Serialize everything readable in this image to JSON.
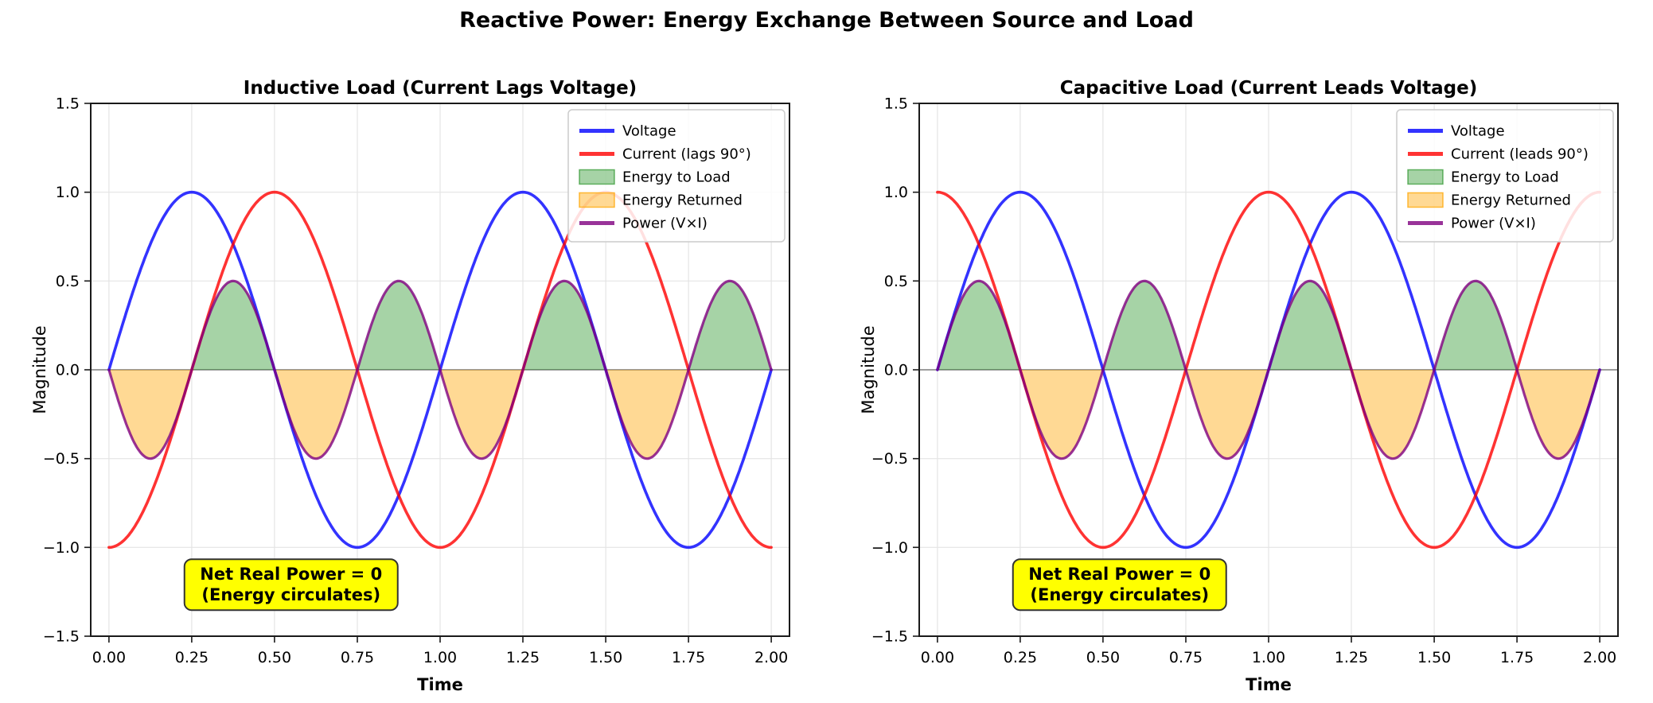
{
  "figure": {
    "title": "Reactive Power: Energy Exchange Between Source and Load",
    "background": "#ffffff"
  },
  "chart_data": [
    {
      "type": "line",
      "title": "Inductive Load (Current Lags Voltage)",
      "xlabel": "Time",
      "ylabel": "Magnitude",
      "xlim": [
        -0.055,
        2.055
      ],
      "ylim": [
        -1.5,
        1.5
      ],
      "grid": true,
      "zero_line_color": "#7f7f7f",
      "xticks": {
        "values": [
          0,
          0.25,
          0.5,
          0.75,
          1.0,
          1.25,
          1.5,
          1.75,
          2.0
        ],
        "labels": [
          "0.00",
          "0.25",
          "0.50",
          "0.75",
          "1.00",
          "1.25",
          "1.50",
          "1.75",
          "2.00"
        ]
      },
      "yticks": {
        "values": [
          -1.5,
          -1.0,
          -0.5,
          0.0,
          0.5,
          1.0,
          1.5
        ],
        "labels": [
          "−1.5",
          "−1.0",
          "−0.5",
          "0.0",
          "0.5",
          "1.0",
          "1.5"
        ]
      },
      "x_samples": [
        0,
        0.125,
        0.25,
        0.375,
        0.5,
        0.625,
        0.75,
        0.875,
        1.0,
        1.125,
        1.25,
        1.375,
        1.5,
        1.625,
        1.75,
        1.875,
        2.0
      ],
      "series": [
        {
          "name": "Voltage",
          "definition": "sin(2πt)",
          "color": "rgba(0,0,255,0.8)",
          "linewidth": 3.6,
          "amplitude": 1,
          "cycles": 1,
          "phase_deg": 0,
          "values": [
            0,
            0.707,
            1,
            0.707,
            0,
            -0.707,
            -1,
            -0.707,
            0,
            0.707,
            1,
            0.707,
            0,
            -0.707,
            -1,
            -0.707,
            0
          ]
        },
        {
          "name": "Current (lags 90°)",
          "definition": "sin(2πt − 90°)",
          "color": "rgba(255,0,0,0.8)",
          "linewidth": 3.6,
          "amplitude": 1,
          "cycles": 1,
          "phase_deg": -90,
          "values": [
            -1,
            -0.707,
            0,
            0.707,
            1,
            0.707,
            0,
            -0.707,
            -1,
            -0.707,
            0,
            0.707,
            1,
            0.707,
            0,
            -0.707,
            -1
          ]
        },
        {
          "name": "Power (V×I)",
          "definition": "−0.5·sin(4πt)",
          "color": "rgba(128,0,128,0.8)",
          "linewidth": 3.2,
          "amplitude": -0.5,
          "cycles": 2,
          "phase_deg": 0,
          "values": [
            0,
            -0.5,
            0,
            0.5,
            0,
            -0.5,
            0,
            0.5,
            0,
            -0.5,
            0,
            0.5,
            0,
            -0.5,
            0,
            0.5,
            0
          ]
        }
      ],
      "fills": {
        "source": "Power (V×I)",
        "positive": {
          "label": "Energy to Load",
          "color": "rgba(0,128,0,0.35)",
          "edge": "rgba(0,128,0,0.55)"
        },
        "negative": {
          "label": "Energy Returned",
          "color": "rgba(255,165,0,0.42)",
          "edge": "rgba(255,165,0,0.75)"
        }
      },
      "legend": {
        "position": "upper right",
        "entries": [
          {
            "label": "Voltage",
            "type": "line",
            "color": "rgba(0,0,255,0.8)"
          },
          {
            "label": "Current (lags 90°)",
            "type": "line",
            "color": "rgba(255,0,0,0.8)"
          },
          {
            "label": "Energy to Load",
            "type": "patch",
            "color": "rgba(0,128,0,0.35)",
            "edge": "rgba(0,128,0,0.55)"
          },
          {
            "label": "Energy Returned",
            "type": "patch",
            "color": "rgba(255,165,0,0.42)",
            "edge": "rgba(255,165,0,0.75)"
          },
          {
            "label": "Power (V×I)",
            "type": "line",
            "color": "rgba(128,0,128,0.8)"
          }
        ]
      },
      "annotation": {
        "text_lines": [
          "Net Real Power = 0",
          "(Energy circulates)"
        ],
        "x": 0.55,
        "y": -1.21,
        "facecolor": "#ffff00",
        "edgecolor": "#333333"
      }
    },
    {
      "type": "line",
      "title": "Capacitive Load (Current Leads Voltage)",
      "xlabel": "Time",
      "ylabel": "Magnitude",
      "xlim": [
        -0.055,
        2.055
      ],
      "ylim": [
        -1.5,
        1.5
      ],
      "grid": true,
      "zero_line_color": "#7f7f7f",
      "xticks": {
        "values": [
          0,
          0.25,
          0.5,
          0.75,
          1.0,
          1.25,
          1.5,
          1.75,
          2.0
        ],
        "labels": [
          "0.00",
          "0.25",
          "0.50",
          "0.75",
          "1.00",
          "1.25",
          "1.50",
          "1.75",
          "2.00"
        ]
      },
      "yticks": {
        "values": [
          -1.5,
          -1.0,
          -0.5,
          0.0,
          0.5,
          1.0,
          1.5
        ],
        "labels": [
          "−1.5",
          "−1.0",
          "−0.5",
          "0.0",
          "0.5",
          "1.0",
          "1.5"
        ]
      },
      "x_samples": [
        0,
        0.125,
        0.25,
        0.375,
        0.5,
        0.625,
        0.75,
        0.875,
        1.0,
        1.125,
        1.25,
        1.375,
        1.5,
        1.625,
        1.75,
        1.875,
        2.0
      ],
      "series": [
        {
          "name": "Voltage",
          "definition": "sin(2πt)",
          "color": "rgba(0,0,255,0.8)",
          "linewidth": 3.6,
          "amplitude": 1,
          "cycles": 1,
          "phase_deg": 0,
          "values": [
            0,
            0.707,
            1,
            0.707,
            0,
            -0.707,
            -1,
            -0.707,
            0,
            0.707,
            1,
            0.707,
            0,
            -0.707,
            -1,
            -0.707,
            0
          ]
        },
        {
          "name": "Current (leads 90°)",
          "definition": "sin(2πt + 90°)",
          "color": "rgba(255,0,0,0.8)",
          "linewidth": 3.6,
          "amplitude": 1,
          "cycles": 1,
          "phase_deg": 90,
          "values": [
            1,
            0.707,
            0,
            -0.707,
            -1,
            -0.707,
            0,
            0.707,
            1,
            0.707,
            0,
            -0.707,
            -1,
            -0.707,
            0,
            0.707,
            1
          ]
        },
        {
          "name": "Power (V×I)",
          "definition": "0.5·sin(4πt)",
          "color": "rgba(128,0,128,0.8)",
          "linewidth": 3.2,
          "amplitude": 0.5,
          "cycles": 2,
          "phase_deg": 0,
          "values": [
            0,
            0.5,
            0,
            -0.5,
            0,
            0.5,
            0,
            -0.5,
            0,
            0.5,
            0,
            -0.5,
            0,
            0.5,
            0,
            -0.5,
            0
          ]
        }
      ],
      "fills": {
        "source": "Power (V×I)",
        "positive": {
          "label": "Energy to Load",
          "color": "rgba(0,128,0,0.35)",
          "edge": "rgba(0,128,0,0.55)"
        },
        "negative": {
          "label": "Energy Returned",
          "color": "rgba(255,165,0,0.42)",
          "edge": "rgba(255,165,0,0.75)"
        }
      },
      "legend": {
        "position": "upper right",
        "entries": [
          {
            "label": "Voltage",
            "type": "line",
            "color": "rgba(0,0,255,0.8)"
          },
          {
            "label": "Current (leads 90°)",
            "type": "line",
            "color": "rgba(255,0,0,0.8)"
          },
          {
            "label": "Energy to Load",
            "type": "patch",
            "color": "rgba(0,128,0,0.35)",
            "edge": "rgba(0,128,0,0.55)"
          },
          {
            "label": "Energy Returned",
            "type": "patch",
            "color": "rgba(255,165,0,0.42)",
            "edge": "rgba(255,165,0,0.75)"
          },
          {
            "label": "Power (V×I)",
            "type": "line",
            "color": "rgba(128,0,128,0.8)"
          }
        ]
      },
      "annotation": {
        "text_lines": [
          "Net Real Power = 0",
          "(Energy circulates)"
        ],
        "x": 0.55,
        "y": -1.21,
        "facecolor": "#ffff00",
        "edgecolor": "#333333"
      }
    }
  ]
}
